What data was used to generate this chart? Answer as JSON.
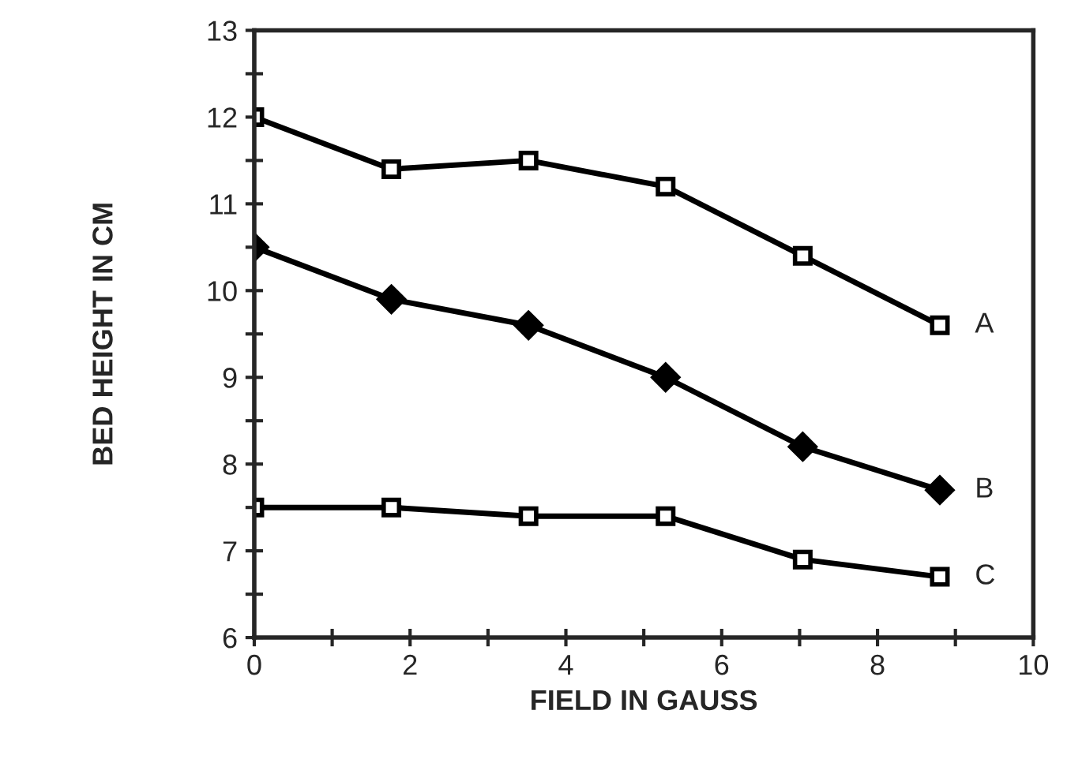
{
  "chart_data": {
    "type": "line",
    "xlabel": "FIELD IN GAUSS",
    "ylabel": "BED HEIGHT IN CM",
    "x": [
      0,
      1.76,
      3.52,
      5.28,
      7.04,
      8.8
    ],
    "series": [
      {
        "name": "A",
        "color": "#000000",
        "marker": "square",
        "values": [
          12.0,
          11.4,
          11.5,
          11.2,
          10.4,
          9.6
        ]
      },
      {
        "name": "B",
        "color": "#000000",
        "marker": "diamond",
        "values": [
          10.5,
          9.9,
          9.6,
          9.0,
          8.2,
          7.7
        ]
      },
      {
        "name": "C",
        "color": "#000000",
        "marker": "square",
        "values": [
          7.5,
          7.5,
          7.4,
          7.4,
          6.9,
          6.7
        ]
      }
    ],
    "xlim": [
      0,
      10
    ],
    "ylim": [
      6,
      13
    ],
    "xticks": [
      0,
      {
        "value": 1,
        "label": null
      },
      2,
      {
        "value": 3,
        "label": null
      },
      4,
      {
        "value": 5,
        "label": null
      },
      6,
      {
        "value": 7,
        "label": null
      },
      8,
      {
        "value": 9,
        "label": null
      },
      10
    ],
    "yticks": [
      6,
      {
        "value": 6.5,
        "label": null
      },
      7,
      {
        "value": 7.5,
        "label": null
      },
      8,
      {
        "value": 8.5,
        "label": null
      },
      9,
      {
        "value": 9.5,
        "label": null
      },
      10,
      {
        "value": 10.5,
        "label": null
      },
      11,
      {
        "value": 11.5,
        "label": null
      },
      12,
      {
        "value": 12.5,
        "label": null
      },
      13
    ],
    "grid": false,
    "legend": false,
    "line_style": "solid"
  }
}
